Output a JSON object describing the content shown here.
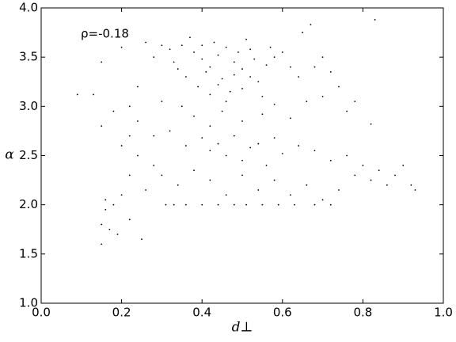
{
  "chart_data": {
    "type": "scatter",
    "color": "#000000",
    "annotation": "ρ=-0.18",
    "xlabel": "d⊥",
    "ylabel": "α",
    "xlim": [
      0,
      1
    ],
    "ylim": [
      1,
      4
    ],
    "xticks": [
      {
        "value": 0,
        "label": "0.0"
      },
      0.2,
      0.4,
      0.6,
      0.8,
      {
        "value": 1,
        "label": "1.0"
      }
    ],
    "yticks": [
      {
        "value": 1,
        "label": "1.0"
      },
      1.5,
      {
        "value": 2,
        "label": "2.0"
      },
      2.5,
      {
        "value": 3,
        "label": "3.0"
      },
      3.5,
      {
        "value": 4,
        "label": "4.0"
      }
    ],
    "x": [
      0.32,
      0.35,
      0.38,
      0.4,
      0.42,
      0.44,
      0.46,
      0.48,
      0.5,
      0.52,
      0.54,
      0.56,
      0.58,
      0.36,
      0.39,
      0.41,
      0.43,
      0.45,
      0.47,
      0.49,
      0.51,
      0.53,
      0.55,
      0.57,
      0.6,
      0.62,
      0.64,
      0.33,
      0.37,
      0.3,
      0.28,
      0.26,
      0.34,
      0.44,
      0.46,
      0.5,
      0.52,
      0.4,
      0.42,
      0.48,
      0.35,
      0.38,
      0.42,
      0.45,
      0.5,
      0.55,
      0.58,
      0.62,
      0.66,
      0.7,
      0.74,
      0.78,
      0.3,
      0.32,
      0.4,
      0.44,
      0.48,
      0.52,
      0.54,
      0.58,
      0.36,
      0.42,
      0.46,
      0.5,
      0.56,
      0.6,
      0.64,
      0.68,
      0.72,
      0.76,
      0.8,
      0.84,
      0.88,
      0.92,
      0.93,
      0.9,
      0.86,
      0.82,
      0.78,
      0.74,
      0.3,
      0.34,
      0.38,
      0.42,
      0.46,
      0.5,
      0.54,
      0.58,
      0.62,
      0.66,
      0.7,
      0.28,
      0.26,
      0.24,
      0.22,
      0.2,
      0.18,
      0.16,
      0.15,
      0.15,
      0.17,
      0.19,
      0.22,
      0.25,
      0.16,
      0.2,
      0.22,
      0.24,
      0.18,
      0.15,
      0.31,
      0.33,
      0.36,
      0.4,
      0.44,
      0.48,
      0.51,
      0.55,
      0.59,
      0.63,
      0.68,
      0.72,
      0.09,
      0.13,
      0.15,
      0.2,
      0.83,
      0.67,
      0.65,
      0.82,
      0.76,
      0.72,
      0.7,
      0.68,
      0.24,
      0.22,
      0.28
    ],
    "y": [
      3.58,
      3.62,
      3.55,
      3.48,
      3.4,
      3.52,
      3.6,
      3.45,
      3.38,
      3.3,
      3.25,
      3.42,
      3.5,
      3.3,
      3.2,
      3.35,
      3.65,
      3.28,
      3.15,
      3.55,
      3.68,
      3.48,
      3.1,
      3.6,
      3.55,
      3.4,
      3.3,
      3.45,
      3.7,
      3.62,
      3.5,
      3.65,
      3.38,
      3.22,
      3.05,
      3.18,
      3.58,
      3.62,
      3.12,
      3.32,
      3.0,
      2.9,
      2.8,
      2.95,
      2.85,
      2.92,
      3.02,
      2.88,
      3.05,
      3.1,
      3.2,
      3.05,
      3.05,
      2.75,
      2.68,
      2.62,
      2.7,
      2.58,
      2.62,
      2.68,
      2.6,
      2.55,
      2.5,
      2.45,
      2.4,
      2.52,
      2.6,
      2.55,
      2.45,
      2.5,
      2.4,
      2.35,
      2.3,
      2.2,
      2.15,
      2.4,
      2.2,
      2.25,
      2.3,
      2.15,
      2.3,
      2.2,
      2.35,
      2.25,
      2.1,
      2.3,
      2.15,
      2.25,
      2.1,
      2.2,
      2.05,
      2.4,
      2.15,
      2.5,
      2.3,
      2.1,
      2.0,
      1.95,
      1.8,
      1.6,
      1.75,
      1.7,
      1.85,
      1.65,
      2.05,
      2.6,
      2.7,
      2.85,
      2.95,
      2.8,
      2.0,
      2.0,
      2.0,
      2.0,
      2.0,
      2.0,
      2.0,
      2.0,
      2.0,
      2.0,
      2.0,
      2.0,
      3.12,
      3.12,
      3.45,
      3.6,
      3.88,
      3.83,
      3.75,
      2.82,
      2.95,
      3.35,
      3.5,
      3.4,
      3.2,
      3.0,
      2.7
    ]
  }
}
